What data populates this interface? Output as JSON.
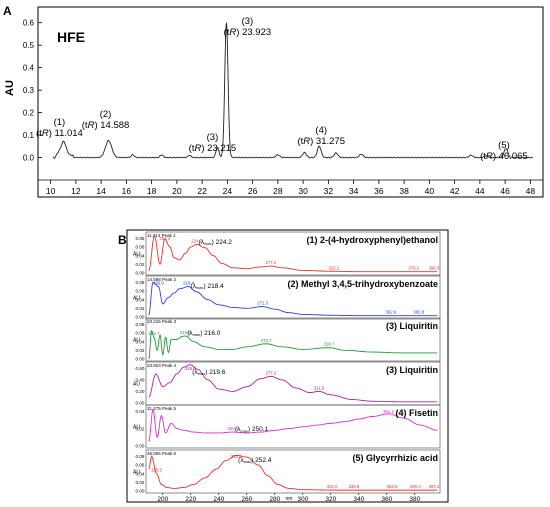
{
  "chromatogram": {
    "panel_letter": "A",
    "sample_label": "HFE",
    "ylabel": "AU",
    "chart_data": {
      "type": "line",
      "title": "",
      "xlabel": "",
      "ylabel": "AU",
      "xlim": [
        9,
        49
      ],
      "ylim": [
        -0.1,
        0.67
      ],
      "x_ticks": [
        10,
        12,
        14,
        16,
        18,
        20,
        22,
        24,
        26,
        28,
        30,
        32,
        34,
        36,
        38,
        40,
        42,
        44,
        46,
        48
      ],
      "y_ticks": [
        0.0,
        0.1,
        0.2,
        0.3,
        0.4,
        0.5,
        0.6
      ],
      "y_tick_labels": [
        "0.0",
        "0.1",
        "0.2",
        "0.3",
        "0.4",
        "0.5",
        "0.6"
      ],
      "peaks": [
        {
          "x": 11.014,
          "height": 0.065,
          "width": 0.18
        },
        {
          "x": 14.588,
          "height": 0.075,
          "width": 0.25
        },
        {
          "x": 16.5,
          "height": 0.012,
          "width": 0.12
        },
        {
          "x": 18.8,
          "height": 0.012,
          "width": 0.12
        },
        {
          "x": 21.0,
          "height": 0.01,
          "width": 0.12
        },
        {
          "x": 23.215,
          "height": 0.045,
          "width": 0.12
        },
        {
          "x": 23.923,
          "height": 0.6,
          "width": 0.13
        },
        {
          "x": 28.0,
          "height": 0.012,
          "width": 0.15
        },
        {
          "x": 30.1,
          "height": 0.022,
          "width": 0.15
        },
        {
          "x": 31.275,
          "height": 0.05,
          "width": 0.15
        },
        {
          "x": 32.6,
          "height": 0.02,
          "width": 0.15
        },
        {
          "x": 34.6,
          "height": 0.015,
          "width": 0.15
        },
        {
          "x": 43.3,
          "height": 0.01,
          "width": 0.15
        },
        {
          "x": 44.5,
          "height": 0.008,
          "width": 0.15
        },
        {
          "x": 46.065,
          "height": 0.04,
          "width": 0.15
        }
      ],
      "annotations": [
        {
          "num": "(1)",
          "tR": "11.014",
          "x": 11.014
        },
        {
          "num": "(2)",
          "tR": "14.588",
          "x": 14.588
        },
        {
          "num": "(3)",
          "tR": "23.215",
          "x": 23.215
        },
        {
          "num": "(3)",
          "tR": "23.923",
          "x": 23.923
        },
        {
          "num": "(4)",
          "tR": "31.275",
          "x": 31.275
        },
        {
          "num": "(5)",
          "tR": "46.065",
          "x": 46.065
        }
      ],
      "grid": false,
      "legend": "none"
    }
  },
  "uv_panel": {
    "panel_letter": "B",
    "xlabel": "nm",
    "x_ticks": [
      200,
      220,
      240,
      260,
      280,
      300,
      320,
      340,
      360,
      380
    ],
    "spectra": [
      {
        "header": "11.014 Peak 1",
        "compound": "(1) 2-(4-hydroxyphenyl)ethanol",
        "color": "#e8302c",
        "lambda_max": "224.2",
        "y_ticks": [
          "0.08",
          "0.06",
          "0.04",
          "0.02",
          "0.00"
        ],
        "chart_data": {
          "type": "line",
          "x": [
            190,
            194,
            198,
            201.4,
            205,
            208,
            212,
            216,
            220,
            224.2,
            230,
            236,
            242,
            250,
            260,
            270,
            277.2,
            285,
            300,
            320,
            340,
            360,
            380,
            396
          ],
          "y": [
            0.005,
            0.085,
            0.02,
            0.078,
            0.06,
            0.035,
            0.03,
            0.045,
            0.06,
            0.066,
            0.058,
            0.04,
            0.022,
            0.012,
            0.01,
            0.014,
            0.016,
            0.012,
            0.006,
            0.004,
            0.003,
            0.003,
            0.003,
            0.003
          ]
        },
        "peak_labels": [
          {
            "x": 201.4,
            "text": "201.4"
          },
          {
            "x": 224.2,
            "text": "224.2"
          },
          {
            "x": 277.2,
            "text": "277.2"
          },
          {
            "x": 322.2,
            "text": "322.2"
          },
          {
            "x": 379.2,
            "text": "379.2"
          },
          {
            "x": 396.0,
            "text": "396.0"
          }
        ]
      },
      {
        "header": "14.588 Peak 2",
        "compound": "(2) Methyl 3,4,5-trihydroxybenzoate",
        "color": "#2c3fd6",
        "lambda_max": "218.4",
        "y_ticks": [
          "0.08",
          "0.06",
          "0.04",
          "0.02",
          "0.00"
        ],
        "chart_data": {
          "type": "line",
          "x": [
            190,
            193,
            196.9,
            200,
            204,
            208,
            212,
            218.4,
            224,
            232,
            240,
            250,
            260,
            271.3,
            280,
            290,
            300,
            320,
            340,
            362.9,
            382.8,
            396
          ],
          "y": [
            0.005,
            0.08,
            0.07,
            0.03,
            0.045,
            0.055,
            0.065,
            0.07,
            0.058,
            0.04,
            0.028,
            0.022,
            0.02,
            0.024,
            0.018,
            0.01,
            0.006,
            0.004,
            0.003,
            0.003,
            0.003,
            0.003
          ]
        },
        "peak_labels": [
          {
            "x": 196.9,
            "text": "196.9"
          },
          {
            "x": 218.4,
            "text": "218.4"
          },
          {
            "x": 271.3,
            "text": "271.3"
          },
          {
            "x": 362.9,
            "text": "362.9"
          },
          {
            "x": 382.8,
            "text": "382.8"
          }
        ]
      },
      {
        "header": "23.215 Peak 3",
        "compound": "(3) Liquiritin",
        "color": "#1f9a3a",
        "lambda_max": "216.0",
        "y_ticks": [
          "0.08",
          "0.06",
          "0.04",
          "0.02",
          "0.00"
        ],
        "chart_data": {
          "type": "line",
          "x": [
            190,
            192,
            193.7,
            196,
            198,
            200,
            202,
            204,
            206,
            210,
            214,
            216,
            222,
            230,
            240,
            250,
            260,
            273.7,
            285,
            300,
            318.7,
            330,
            350,
            370,
            396
          ],
          "y": [
            0.0,
            0.065,
            0.05,
            0.02,
            0.055,
            0.01,
            0.05,
            0.015,
            0.045,
            0.045,
            0.052,
            0.053,
            0.04,
            0.028,
            0.022,
            0.022,
            0.028,
            0.035,
            0.028,
            0.022,
            0.026,
            0.02,
            0.016,
            0.014,
            0.014
          ]
        },
        "peak_labels": [
          {
            "x": 193.7,
            "text": "193.7"
          },
          {
            "x": 216.0,
            "text": "216.0"
          },
          {
            "x": 273.7,
            "text": "273.7"
          },
          {
            "x": 318.7,
            "text": "318.7"
          }
        ]
      },
      {
        "header": "23.923 Peak 4",
        "compound": "(3) Liquiritin",
        "color": "#b3209b",
        "lambda_max": "219.6",
        "y_ticks": [
          "0.60",
          "0.40",
          "0.20",
          "0.00"
        ],
        "chart_data": {
          "type": "line",
          "x": [
            190,
            195,
            200,
            205,
            210,
            215,
            219.6,
            225,
            232,
            240,
            250,
            260,
            270,
            277.2,
            285,
            295,
            305,
            311.5,
            320,
            335,
            350,
            370,
            396
          ],
          "y": [
            0.1,
            0.5,
            0.28,
            0.35,
            0.5,
            0.62,
            0.66,
            0.58,
            0.4,
            0.24,
            0.2,
            0.28,
            0.42,
            0.46,
            0.4,
            0.26,
            0.18,
            0.2,
            0.14,
            0.06,
            0.03,
            0.02,
            0.02
          ]
        },
        "peak_labels": [
          {
            "x": 219.6,
            "text": "219.6"
          },
          {
            "x": 277.2,
            "text": "277.2"
          },
          {
            "x": 311.5,
            "text": "311.5"
          }
        ]
      },
      {
        "header": "31.275 Peak 5",
        "compound": "(4) Fisetin",
        "color": "#d62fd6",
        "lambda_max": "250.1",
        "y_ticks": [
          "0.04",
          "0.02",
          "0.00"
        ],
        "chart_data": {
          "type": "line",
          "x": [
            190,
            193,
            196,
            199,
            202,
            206,
            210,
            215,
            222,
            230,
            240,
            250.1,
            260,
            270,
            280,
            290,
            300,
            310,
            320,
            330,
            340,
            350,
            361.1,
            372,
            384,
            396
          ],
          "y": [
            0.005,
            0.042,
            0.01,
            0.035,
            0.015,
            0.026,
            0.02,
            0.018,
            0.016,
            0.015,
            0.015,
            0.016,
            0.015,
            0.016,
            0.018,
            0.02,
            0.022,
            0.024,
            0.026,
            0.028,
            0.031,
            0.034,
            0.037,
            0.032,
            0.024,
            0.018
          ]
        },
        "peak_labels": [
          {
            "x": 250.1,
            "text": "250.1"
          },
          {
            "x": 361.1,
            "text": "361.1"
          }
        ]
      },
      {
        "header": "46.065 Peak 6",
        "compound": "(5) Glycyrrhizic acid",
        "color": "#e8302c",
        "lambda_max": "252.4",
        "y_ticks": [
          "0.08",
          "0.06",
          "0.04",
          "0.02",
          "0.00"
        ],
        "chart_data": {
          "type": "line",
          "x": [
            190,
            192,
            195.5,
            199,
            203,
            208,
            215,
            222,
            230,
            238,
            245,
            252.4,
            260,
            268,
            275,
            282,
            290,
            300,
            321,
            336.5,
            350,
            363.8,
            380.4,
            396
          ],
          "y": [
            0.05,
            0.08,
            0.04,
            0.015,
            0.008,
            0.006,
            0.008,
            0.015,
            0.03,
            0.05,
            0.07,
            0.082,
            0.078,
            0.06,
            0.035,
            0.015,
            0.006,
            0.003,
            0.002,
            0.002,
            0.002,
            0.002,
            0.002,
            0.002
          ]
        },
        "peak_labels": [
          {
            "x": 195.5,
            "text": "195.5"
          },
          {
            "x": 252.4,
            "text": "252.4"
          },
          {
            "x": 321.0,
            "text": "321.0"
          },
          {
            "x": 336.5,
            "text": "336.5"
          },
          {
            "x": 363.8,
            "text": "363.8"
          },
          {
            "x": 380.4,
            "text": "380.4"
          },
          {
            "x": 397.2,
            "text": "397.2"
          }
        ]
      }
    ]
  }
}
